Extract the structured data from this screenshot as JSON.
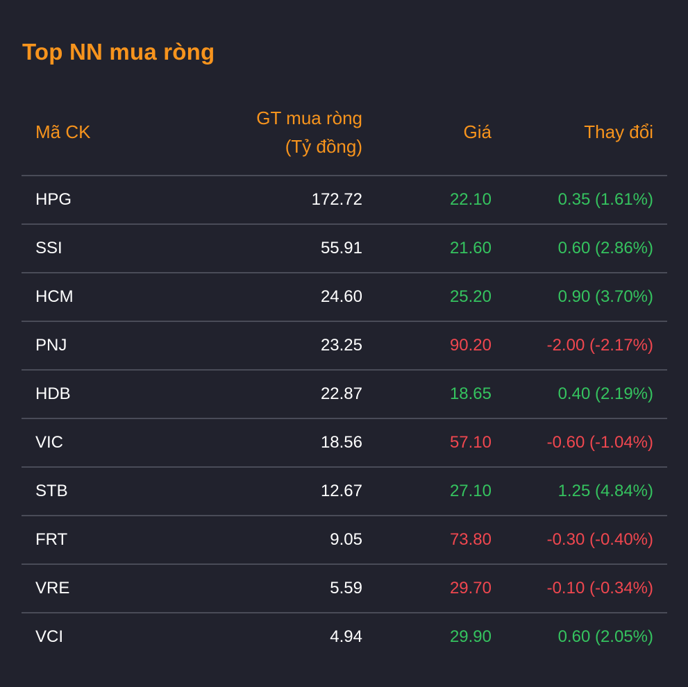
{
  "title": "Top NN mua ròng",
  "headers": {
    "code": "Mã CK",
    "value_line1": "GT mua ròng",
    "value_line2": "(Tỷ đồng)",
    "price": "Giá",
    "change": "Thay đổi"
  },
  "colors": {
    "accent": "#f7941d",
    "up": "#35c35f",
    "down": "#f0474f",
    "background": "#21222d"
  },
  "rows": [
    {
      "code": "HPG",
      "value": "172.72",
      "price": "22.10",
      "change": "0.35 (1.61%)",
      "dir": "up"
    },
    {
      "code": "SSI",
      "value": "55.91",
      "price": "21.60",
      "change": "0.60 (2.86%)",
      "dir": "up"
    },
    {
      "code": "HCM",
      "value": "24.60",
      "price": "25.20",
      "change": "0.90 (3.70%)",
      "dir": "up"
    },
    {
      "code": "PNJ",
      "value": "23.25",
      "price": "90.20",
      "change": "-2.00 (-2.17%)",
      "dir": "down"
    },
    {
      "code": "HDB",
      "value": "22.87",
      "price": "18.65",
      "change": "0.40 (2.19%)",
      "dir": "up"
    },
    {
      "code": "VIC",
      "value": "18.56",
      "price": "57.10",
      "change": "-0.60 (-1.04%)",
      "dir": "down"
    },
    {
      "code": "STB",
      "value": "12.67",
      "price": "27.10",
      "change": "1.25 (4.84%)",
      "dir": "up"
    },
    {
      "code": "FRT",
      "value": "9.05",
      "price": "73.80",
      "change": "-0.30 (-0.40%)",
      "dir": "down"
    },
    {
      "code": "VRE",
      "value": "5.59",
      "price": "29.70",
      "change": "-0.10 (-0.34%)",
      "dir": "down"
    },
    {
      "code": "VCI",
      "value": "4.94",
      "price": "29.90",
      "change": "0.60 (2.05%)",
      "dir": "up"
    }
  ]
}
